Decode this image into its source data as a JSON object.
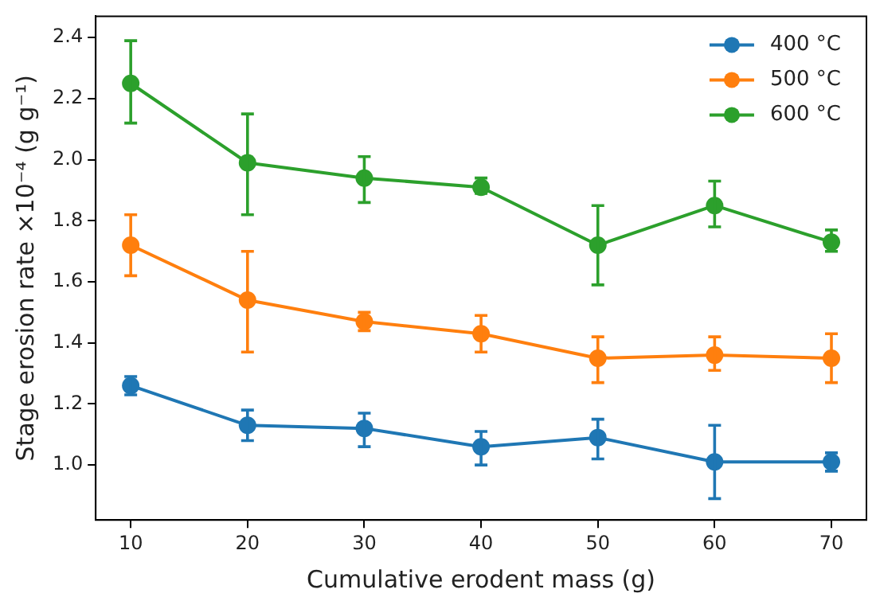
{
  "chart_data": {
    "type": "line",
    "xlabel": "Cumulative erodent mass (g)",
    "ylabel": "Stage erosion rate ×10⁻⁴ (g g⁻¹)",
    "x": [
      10,
      20,
      30,
      40,
      50,
      60,
      70
    ],
    "xlim": [
      7,
      73
    ],
    "xticks": [
      10,
      20,
      30,
      40,
      50,
      60,
      70
    ],
    "ylim": [
      0.82,
      2.47
    ],
    "yticks": [
      {
        "value": 1,
        "label": "1.0"
      },
      1.2,
      1.4,
      1.6,
      1.8,
      {
        "value": 2,
        "label": "2.0"
      },
      2.2,
      2.4
    ],
    "grid": false,
    "legend": "top right",
    "marker": "circle",
    "line_style": "solid",
    "series": [
      {
        "name": "400 °C",
        "color": "#1f77b4",
        "values": [
          1.26,
          1.13,
          1.12,
          1.06,
          1.09,
          1.01,
          1.01
        ],
        "errors": [
          [
            1.23,
            1.29
          ],
          [
            1.08,
            1.18
          ],
          [
            1.06,
            1.17
          ],
          [
            1.0,
            1.11
          ],
          [
            1.02,
            1.15
          ],
          [
            0.89,
            1.13
          ],
          [
            0.98,
            1.04
          ]
        ]
      },
      {
        "name": "500 °C",
        "color": "#ff7f0e",
        "values": [
          1.72,
          1.54,
          1.47,
          1.43,
          1.35,
          1.36,
          1.35
        ],
        "errors": [
          [
            1.62,
            1.82
          ],
          [
            1.37,
            1.7
          ],
          [
            1.44,
            1.5
          ],
          [
            1.37,
            1.49
          ],
          [
            1.27,
            1.42
          ],
          [
            1.31,
            1.42
          ],
          [
            1.27,
            1.43
          ]
        ]
      },
      {
        "name": "600 °C",
        "color": "#2ca02c",
        "values": [
          2.25,
          1.99,
          1.94,
          1.91,
          1.72,
          1.85,
          1.73
        ],
        "errors": [
          [
            2.12,
            2.39
          ],
          [
            1.82,
            2.15
          ],
          [
            1.86,
            2.01
          ],
          [
            1.89,
            1.94
          ],
          [
            1.59,
            1.85
          ],
          [
            1.78,
            1.93
          ],
          [
            1.7,
            1.77
          ]
        ]
      }
    ]
  }
}
